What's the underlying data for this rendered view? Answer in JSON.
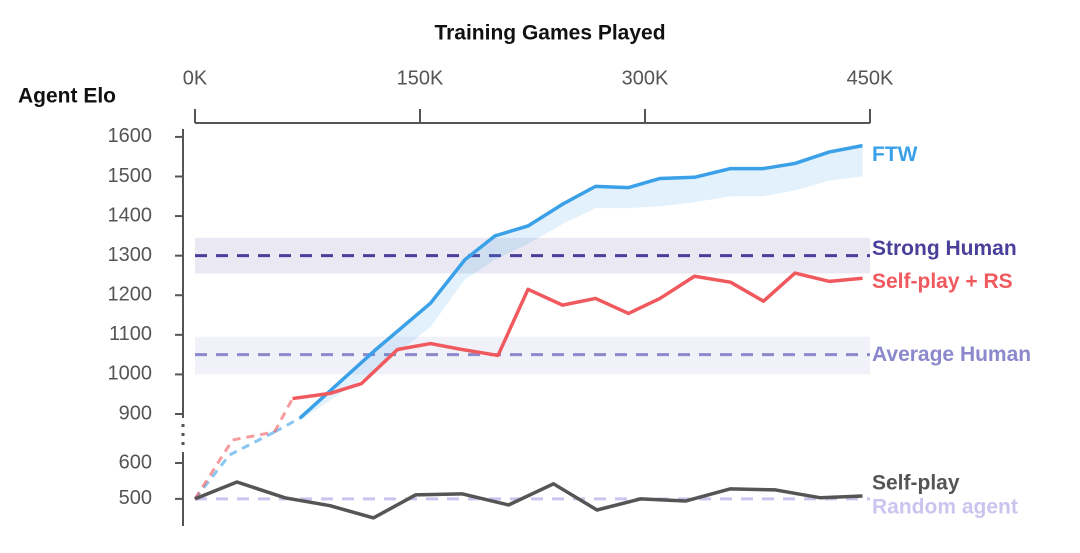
{
  "chart_data": {
    "type": "line",
    "title": "Training Games Played",
    "y_label": "Agent Elo",
    "xlim": [
      0,
      450000
    ],
    "xticks": [
      {
        "value": 0,
        "label": "0K"
      },
      {
        "value": 150000,
        "label": "150K"
      },
      {
        "value": 300000,
        "label": "300K"
      },
      {
        "value": 450000,
        "label": "450K"
      }
    ],
    "ylim": [
      430,
      1620
    ],
    "ybreak": [
      600,
      900
    ],
    "yticks": [
      500,
      600,
      900,
      1000,
      1100,
      1200,
      1300,
      1400,
      1500,
      1600
    ],
    "series": [
      {
        "name": "FTW",
        "color": "#3aa0e8",
        "solid_from": 70000,
        "x": [
          0,
          23000,
          53000,
          70000,
          120000,
          157000,
          180000,
          200000,
          222000,
          245000,
          267000,
          289000,
          310000,
          333000,
          357000,
          379000,
          400000,
          423000,
          445000
        ],
        "values": [
          500,
          649,
          790,
          875,
          1061,
          1180,
          1290,
          1350,
          1375,
          1430,
          1475,
          1472,
          1495,
          1498,
          1520,
          1520,
          1533,
          1562,
          1578
        ],
        "lower": [
          null,
          null,
          null,
          860,
          1010,
          1120,
          1240,
          1290,
          1330,
          1380,
          1420,
          1420,
          1425,
          1435,
          1450,
          1450,
          1465,
          1490,
          1500
        ]
      },
      {
        "name": "Self-play + RS",
        "color": "#f0595e",
        "solid_from": 65000,
        "x": [
          0,
          25000,
          53000,
          65000,
          90000,
          111000,
          135000,
          157000,
          178000,
          202000,
          222000,
          245000,
          267000,
          289000,
          310000,
          333000,
          357000,
          379000,
          400000,
          423000,
          445000
        ],
        "values": [
          500,
          741,
          790,
          939,
          952,
          977,
          1063,
          1078,
          1063,
          1048,
          1215,
          1175,
          1192,
          1154,
          1192,
          1248,
          1233,
          1185,
          1256,
          1235,
          1243
        ]
      },
      {
        "name": "Self-play",
        "color": "#555555",
        "solid_from": 0,
        "x": [
          0,
          28000,
          60000,
          90000,
          119000,
          147000,
          178000,
          209000,
          239000,
          268000,
          297000,
          327000,
          357000,
          387000,
          417000,
          445000
        ],
        "values": [
          500,
          547,
          503,
          481,
          447,
          511,
          514,
          483,
          542,
          469,
          500,
          494,
          528,
          525,
          503,
          508
        ]
      }
    ],
    "reference_lines": [
      {
        "name": "Strong Human",
        "value": 1300,
        "band": [
          1255,
          1345
        ],
        "color": "#4a3f9a"
      },
      {
        "name": "Average Human",
        "value": 1050,
        "band": [
          1000,
          1095
        ],
        "color": "#8b88cc"
      },
      {
        "name": "Random agent",
        "value": 500,
        "color": "#c9c5ee"
      }
    ]
  }
}
